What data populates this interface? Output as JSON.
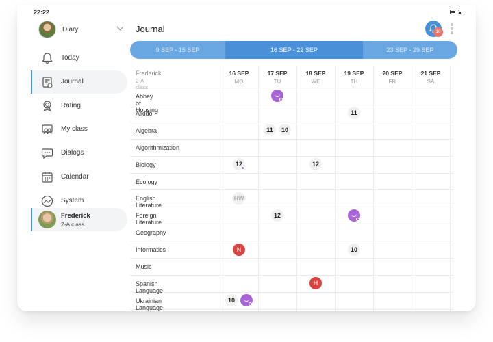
{
  "status": {
    "time": "22:22"
  },
  "profile": {
    "name": "Diary"
  },
  "nav": [
    {
      "label": "Today",
      "icon": "bell-icon"
    },
    {
      "label": "Journal",
      "icon": "journal-icon",
      "active": true
    },
    {
      "label": "Rating",
      "icon": "medal-icon"
    },
    {
      "label": "My class",
      "icon": "class-icon"
    },
    {
      "label": "Dialogs",
      "icon": "dialog-icon"
    },
    {
      "label": "Calendar",
      "icon": "calendar-icon"
    },
    {
      "label": "System",
      "icon": "cloud-icon"
    }
  ],
  "user": {
    "name": "Frederick",
    "class": "2-A class"
  },
  "header": {
    "title": "Journal",
    "notification_count": "10"
  },
  "weeks": [
    {
      "label": "9 SEP - 15 SEP"
    },
    {
      "label": "16 SEP - 22 SEP",
      "current": true
    },
    {
      "label": "23 SEP - 29 SEP"
    }
  ],
  "table": {
    "student": {
      "name": "Frederick",
      "class": "2-A class"
    },
    "days": [
      {
        "date": "16 SEP",
        "dow": "MO"
      },
      {
        "date": "17 SEP",
        "dow": "TU"
      },
      {
        "date": "18 SEP",
        "dow": "WE"
      },
      {
        "date": "19 SEP",
        "dow": "TH"
      },
      {
        "date": "20 SEP",
        "dow": "FR"
      },
      {
        "date": "21 SEP",
        "dow": "SA"
      }
    ],
    "subjects": [
      "Abbey of Housing",
      "Aikido",
      "Algebra",
      "Algorithmization",
      "Biology",
      "Ecology",
      "English Literature",
      "Foreign Literature",
      "Geography",
      "Informatics",
      "Music",
      "Spanish Language",
      "Ukrainian Language"
    ],
    "marks": [
      {
        "row": 0,
        "day": 1,
        "type": "smile",
        "dot": true
      },
      {
        "row": 1,
        "day": 3,
        "value": "11"
      },
      {
        "row": 2,
        "day": 1,
        "value": "11"
      },
      {
        "row": 2,
        "day": 1,
        "value": "10",
        "second": true
      },
      {
        "row": 4,
        "day": 0,
        "value": "12",
        "dot": true
      },
      {
        "row": 4,
        "day": 2,
        "value": "12"
      },
      {
        "row": 6,
        "day": 0,
        "value": "HW",
        "type": "hw"
      },
      {
        "row": 7,
        "day": 1,
        "value": "12"
      },
      {
        "row": 7,
        "day": 3,
        "type": "smile",
        "dot": true
      },
      {
        "row": 9,
        "day": 0,
        "value": "N",
        "type": "red"
      },
      {
        "row": 9,
        "day": 3,
        "value": "10"
      },
      {
        "row": 11,
        "day": 2,
        "value": "H",
        "type": "red"
      },
      {
        "row": 12,
        "day": 0,
        "value": "10"
      },
      {
        "row": 12,
        "day": 0,
        "type": "smile",
        "dot": true,
        "second": true
      }
    ]
  }
}
